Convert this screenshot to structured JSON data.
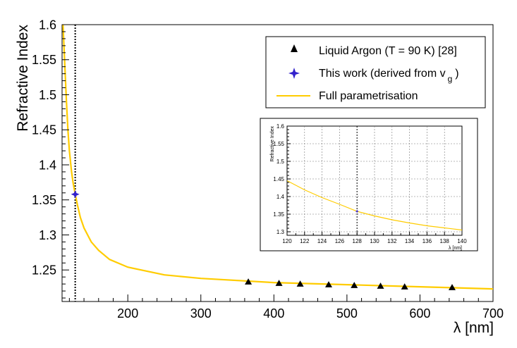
{
  "chart_data": [
    {
      "type": "line",
      "xlabel": "λ [nm]",
      "ylabel": "Refractive Index",
      "xlim": [
        110,
        700
      ],
      "ylim": [
        1.205,
        1.6
      ],
      "x_ticks": [
        200,
        300,
        400,
        500,
        600,
        700
      ],
      "x_tick_labels": [
        "200",
        "300",
        "400",
        "500",
        "600",
        "700"
      ],
      "y_ticks": [
        1.25,
        1.3,
        1.35,
        1.4,
        1.45,
        1.5,
        1.55,
        1.6
      ],
      "y_tick_labels": [
        "1.25",
        "1.3",
        "1.35",
        "1.4",
        "1.45",
        "1.5",
        "1.55",
        "1.6"
      ],
      "grid": false,
      "legend_position": "top-right",
      "legend": [
        {
          "label": "Liquid Argon (T = 90 K) [28]",
          "marker": "triangle"
        },
        {
          "label": "This work (derived from v",
          "sub": "g",
          "suffix": ")",
          "marker": "star"
        },
        {
          "label": "Full parametrisation",
          "marker": "line"
        }
      ],
      "reference_line_x": 128,
      "series": [
        {
          "name": "Liquid Argon (T = 90 K) [28]",
          "kind": "scatter",
          "color": "#000000",
          "points": [
            [
              365,
              1.233
            ],
            [
              407,
              1.231
            ],
            [
              436,
              1.23
            ],
            [
              475,
              1.229
            ],
            [
              510,
              1.228
            ],
            [
              546,
              1.227
            ],
            [
              579,
              1.226
            ],
            [
              644,
              1.225
            ]
          ]
        },
        {
          "name": "This work (derived from v_g)",
          "kind": "point",
          "color": "#3322cc",
          "points": [
            [
              128,
              1.358
            ]
          ]
        },
        {
          "name": "Full parametrisation",
          "kind": "curve",
          "color": "#ffcc00",
          "points": [
            [
              110,
              1.63
            ],
            [
              113,
              1.56
            ],
            [
              116,
              1.49
            ],
            [
              118,
              1.45
            ],
            [
              120,
              1.42
            ],
            [
              123,
              1.39
            ],
            [
              125,
              1.375
            ],
            [
              128,
              1.358
            ],
            [
              131,
              1.343
            ],
            [
              135,
              1.325
            ],
            [
              140,
              1.31
            ],
            [
              150,
              1.29
            ],
            [
              160,
              1.278
            ],
            [
              175,
              1.265
            ],
            [
              200,
              1.254
            ],
            [
              250,
              1.243
            ],
            [
              300,
              1.238
            ],
            [
              400,
              1.232
            ],
            [
              500,
              1.229
            ],
            [
              600,
              1.226
            ],
            [
              700,
              1.223
            ]
          ]
        }
      ]
    },
    {
      "type": "line",
      "xlabel": "λ [nm]",
      "ylabel": "Refractive Index",
      "xlim": [
        120,
        140
      ],
      "ylim": [
        1.29,
        1.6
      ],
      "x_ticks": [
        120,
        122,
        124,
        126,
        128,
        130,
        132,
        134,
        136,
        138,
        140
      ],
      "x_tick_labels": [
        "120",
        "122",
        "124",
        "126",
        "128",
        "130",
        "132",
        "134",
        "136",
        "138",
        "140"
      ],
      "y_ticks": [
        1.3,
        1.35,
        1.4,
        1.45,
        1.5,
        1.55,
        1.6
      ],
      "y_tick_labels": [
        "1.3",
        "1.35",
        "1.4",
        "1.45",
        "1.5",
        "1.55",
        "1.6"
      ],
      "grid": true,
      "reference_line_x": 128,
      "series": [
        {
          "name": "This work (derived from v_g)",
          "kind": "point",
          "color": "#3322cc",
          "points": [
            [
              128,
              1.358
            ]
          ]
        },
        {
          "name": "Full parametrisation",
          "kind": "curve",
          "color": "#ffcc00",
          "points": [
            [
              120,
              1.445
            ],
            [
              122,
              1.419
            ],
            [
              124,
              1.397
            ],
            [
              126,
              1.378
            ],
            [
              128,
              1.358
            ],
            [
              130,
              1.345
            ],
            [
              132,
              1.334
            ],
            [
              134,
              1.325
            ],
            [
              136,
              1.317
            ],
            [
              138,
              1.311
            ],
            [
              140,
              1.305
            ]
          ]
        }
      ]
    }
  ]
}
